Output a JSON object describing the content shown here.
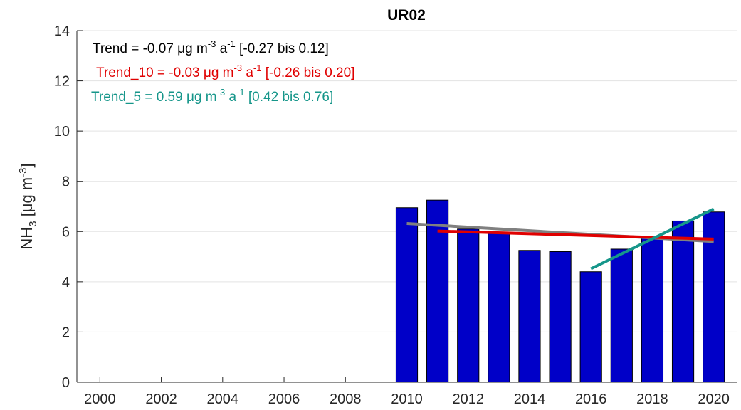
{
  "chart_data": {
    "type": "bar",
    "title": "UR02",
    "ylabel": [
      {
        "text": "NH"
      },
      {
        "text": "3",
        "sub": true
      },
      {
        "text": " [μg m"
      },
      {
        "text": "-3",
        "sup": true
      },
      {
        "text": "]"
      }
    ],
    "x": [
      2010,
      2011,
      2012,
      2013,
      2014,
      2015,
      2016,
      2017,
      2018,
      2019,
      2020
    ],
    "values": [
      6.95,
      7.25,
      6.1,
      5.95,
      5.25,
      5.2,
      4.4,
      5.3,
      5.75,
      6.42,
      6.78
    ],
    "color": "#0000c8",
    "xlim": [
      1999.25,
      2020.75
    ],
    "xticks": [
      2000,
      2002,
      2004,
      2006,
      2008,
      2010,
      2012,
      2014,
      2016,
      2018,
      2020
    ],
    "ylim": [
      0,
      14
    ],
    "yticks": [
      0,
      2,
      4,
      6,
      8,
      10,
      12,
      14
    ],
    "grid": true,
    "trend_lines": [
      {
        "color": "#808080",
        "x": [
          2010,
          2020
        ],
        "values": [
          6.32,
          5.6
        ]
      },
      {
        "color": "#e00000",
        "x": [
          2011,
          2020
        ],
        "values": [
          6.02,
          5.7
        ]
      },
      {
        "color": "#16968a",
        "x": [
          2016,
          2020
        ],
        "values": [
          4.52,
          6.9
        ]
      }
    ],
    "annotations": [
      {
        "color": "#000000",
        "parts": [
          {
            "text": "Trend = -0.07 μg m"
          },
          {
            "text": "-3",
            "sup": true
          },
          {
            "text": " a"
          },
          {
            "text": "-1",
            "sup": true
          },
          {
            "text": " [-0.27 bis 0.12]"
          }
        ]
      },
      {
        "color": "#e00000",
        "parts": [
          {
            "text": "Trend_10 = -0.03 μg m"
          },
          {
            "text": "-3",
            "sup": true
          },
          {
            "text": " a"
          },
          {
            "text": "-1",
            "sup": true
          },
          {
            "text": " [-0.26 bis 0.20]"
          }
        ]
      },
      {
        "color": "#16968a",
        "parts": [
          {
            "text": "Trend_5 = 0.59 μg m"
          },
          {
            "text": "-3",
            "sup": true
          },
          {
            "text": " a"
          },
          {
            "text": "-1",
            "sup": true
          },
          {
            "text": " [0.42 bis 0.76]"
          }
        ]
      }
    ]
  }
}
